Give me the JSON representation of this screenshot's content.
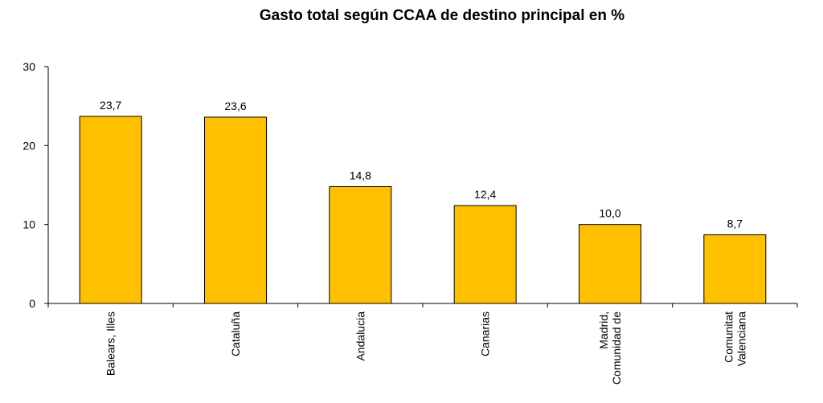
{
  "chart_data": {
    "type": "bar",
    "title": "Gasto total según CCAA de destino principal en %",
    "xlabel": "",
    "ylabel": "",
    "ylim": [
      0,
      30
    ],
    "yticks": [
      0,
      10,
      20,
      30
    ],
    "grid": false,
    "bar_color": "#FFC000",
    "categories": [
      [
        "Balears, Illes"
      ],
      [
        "Cataluña"
      ],
      [
        "Andalucia"
      ],
      [
        "Canarias"
      ],
      [
        "Madrid,",
        "Comunidad de"
      ],
      [
        "Comunitat",
        "Valenciana"
      ]
    ],
    "values": [
      23.7,
      23.6,
      14.8,
      12.4,
      10.0,
      8.7
    ],
    "data_labels": [
      "23,7",
      "23,6",
      "14,8",
      "12,4",
      "10,0",
      "8,7"
    ]
  }
}
